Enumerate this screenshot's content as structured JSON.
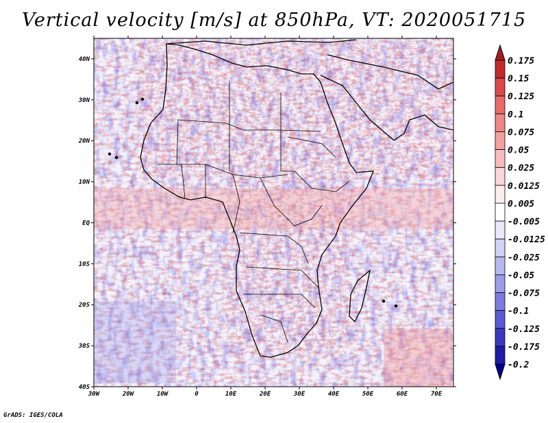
{
  "title": "Vertical velocity [m/s] at 850hPa, VT: 2020051715",
  "credit": "GrADS: IGES/COLA",
  "map": {
    "lon_range": [
      -30,
      75
    ],
    "lat_range": [
      -40,
      45
    ],
    "x_ticks": [
      "30W",
      "20W",
      "10W",
      "0",
      "10E",
      "20E",
      "30E",
      "40E",
      "50E",
      "60E",
      "70E"
    ],
    "x_tick_values": [
      -30,
      -20,
      -10,
      0,
      10,
      20,
      30,
      40,
      50,
      60,
      70
    ],
    "y_ticks": [
      "40N",
      "30N",
      "20N",
      "10N",
      "EQ",
      "10S",
      "20S",
      "30S",
      "40S"
    ],
    "y_tick_values": [
      40,
      30,
      20,
      10,
      0,
      -10,
      -20,
      -30,
      -40
    ]
  },
  "colorbar": {
    "levels": [
      "0.175",
      "0.15",
      "0.125",
      "0.1",
      "0.075",
      "0.05",
      "0.025",
      "0.0125",
      "0.005",
      "-0.005",
      "-0.0125",
      "-0.025",
      "-0.05",
      "-0.075",
      "-0.1",
      "-0.125",
      "-0.175",
      "-0.2"
    ],
    "colors": [
      "#a51e23",
      "#c52a2a",
      "#dd4848",
      "#ea6a6a",
      "#f08686",
      "#f4a0a0",
      "#f8bcbc",
      "#fbd6d6",
      "#fdeeee",
      "#ffffff",
      "#e9e9fb",
      "#d2d2f6",
      "#b8b8f0",
      "#9c9ce8",
      "#7c7ce0",
      "#5a5ad4",
      "#3838c2",
      "#1c1ca8",
      "#00008f"
    ]
  }
}
